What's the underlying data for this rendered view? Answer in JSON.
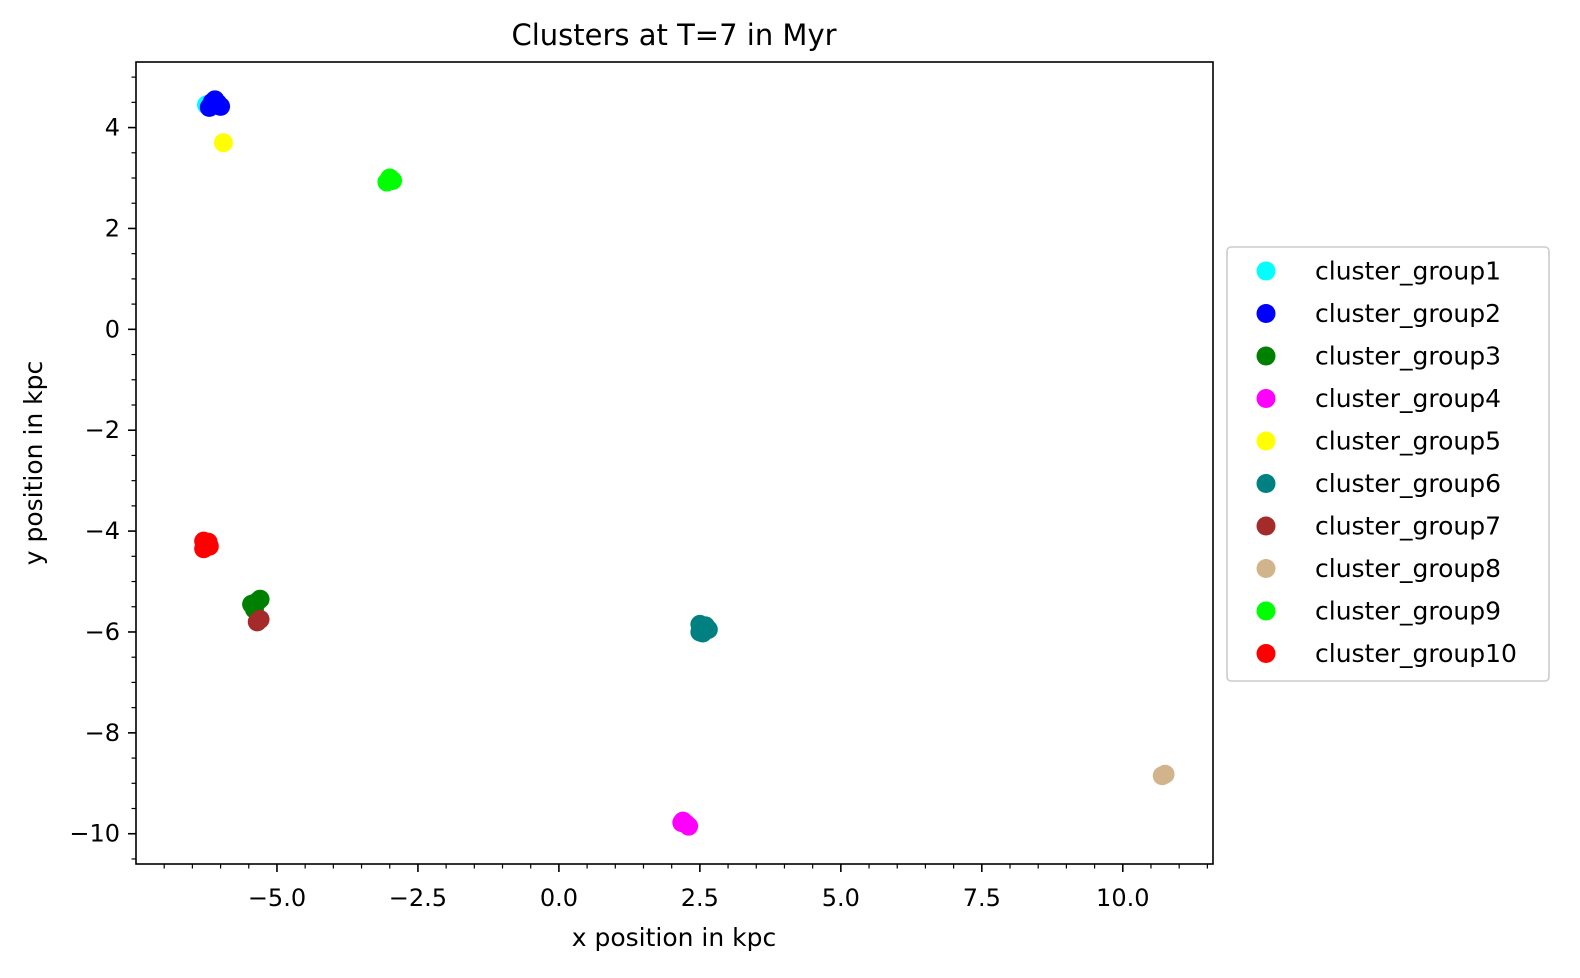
{
  "chart_data": {
    "type": "scatter",
    "title": "Clusters at T=7 in Myr",
    "xlabel": "x position in kpc",
    "ylabel": "y position in kpc",
    "xlim": [
      -7.5,
      11.6
    ],
    "ylim": [
      -10.6,
      5.3
    ],
    "x_ticks": [
      -5.0,
      -2.5,
      0.0,
      2.5,
      5.0,
      7.5,
      10.0
    ],
    "x_tick_labels": [
      "−5.0",
      "−2.5",
      "0.0",
      "2.5",
      "5.0",
      "7.5",
      "10.0"
    ],
    "y_ticks": [
      4,
      2,
      0,
      -2,
      -4,
      -6,
      -8,
      -10
    ],
    "y_tick_labels": [
      "4",
      "2",
      "0",
      "−2",
      "−4",
      "−6",
      "−8",
      "−10"
    ],
    "grid": false,
    "legend_position": "outside-right",
    "series": [
      {
        "name": "cluster_group1",
        "color": "#00ffff",
        "x": [
          -6.25,
          -6.2
        ],
        "y": [
          4.45,
          4.4
        ]
      },
      {
        "name": "cluster_group2",
        "color": "#0000ff",
        "x": [
          -6.1,
          -6.0,
          -6.2,
          -6.15,
          -6.05
        ],
        "y": [
          4.55,
          4.42,
          4.4,
          4.5,
          4.48
        ]
      },
      {
        "name": "cluster_group3",
        "color": "#008000",
        "x": [
          -5.3,
          -5.45,
          -5.4,
          -5.35
        ],
        "y": [
          -5.35,
          -5.45,
          -5.55,
          -5.4
        ]
      },
      {
        "name": "cluster_group4",
        "color": "#ff00ff",
        "x": [
          2.2,
          2.25,
          2.3,
          2.18
        ],
        "y": [
          -9.75,
          -9.8,
          -9.85,
          -9.78
        ]
      },
      {
        "name": "cluster_group5",
        "color": "#ffff00",
        "x": [
          -5.95
        ],
        "y": [
          3.7
        ]
      },
      {
        "name": "cluster_group6",
        "color": "#008080",
        "x": [
          2.5,
          2.55,
          2.65,
          2.5,
          2.6,
          2.55
        ],
        "y": [
          -5.85,
          -5.95,
          -5.95,
          -6.0,
          -5.88,
          -6.02
        ]
      },
      {
        "name": "cluster_group7",
        "color": "#a52a2a",
        "x": [
          -5.35,
          -5.3
        ],
        "y": [
          -5.8,
          -5.75
        ]
      },
      {
        "name": "cluster_group8",
        "color": "#d2b48c",
        "x": [
          10.7,
          10.75
        ],
        "y": [
          -8.85,
          -8.82
        ]
      },
      {
        "name": "cluster_group9",
        "color": "#00ff00",
        "x": [
          -3.0,
          -2.95,
          -3.05
        ],
        "y": [
          3.0,
          2.95,
          2.92
        ]
      },
      {
        "name": "cluster_group10",
        "color": "#ff0000",
        "x": [
          -6.3,
          -6.25,
          -6.2,
          -6.3,
          -6.22
        ],
        "y": [
          -4.2,
          -4.25,
          -4.3,
          -4.35,
          -4.22
        ]
      }
    ]
  }
}
